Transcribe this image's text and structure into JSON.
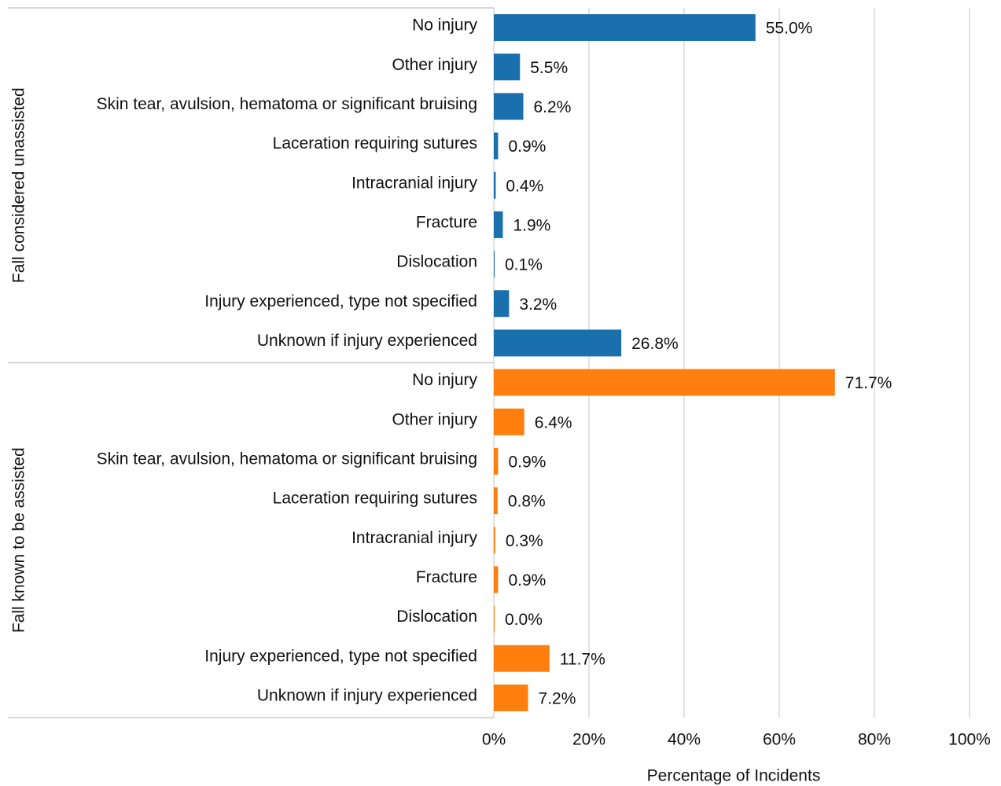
{
  "chart_data": {
    "type": "bar",
    "orientation": "horizontal",
    "xlabel": "Percentage of Incidents",
    "xlim": [
      0,
      100
    ],
    "xticks": [
      {
        "value": 0,
        "label": "0%"
      },
      {
        "value": 20,
        "label": "20%"
      },
      {
        "value": 40,
        "label": "40%"
      },
      {
        "value": 60,
        "label": "60%"
      },
      {
        "value": 80,
        "label": "80%"
      },
      {
        "value": 100,
        "label": "100%"
      }
    ],
    "grid": true,
    "groups": [
      {
        "name": "Fall considered unassisted",
        "color": "#1a6fad",
        "categories": [
          "No injury",
          "Other injury",
          "Skin tear, avulsion, hematoma or significant bruising",
          "Laceration requiring sutures",
          "Intracranial injury",
          "Fracture",
          "Dislocation",
          "Injury experienced, type not specified",
          "Unknown if injury experienced"
        ],
        "values": [
          55.0,
          5.5,
          6.2,
          0.9,
          0.4,
          1.9,
          0.1,
          3.2,
          26.8
        ],
        "value_labels": [
          "55.0%",
          "5.5%",
          "6.2%",
          "0.9%",
          "0.4%",
          "1.9%",
          "0.1%",
          "3.2%",
          "26.8%"
        ]
      },
      {
        "name": "Fall known to be assisted",
        "color": "#ff7f0e",
        "categories": [
          "No injury",
          "Other injury",
          "Skin tear, avulsion, hematoma or significant bruising",
          "Laceration requiring sutures",
          "Intracranial injury",
          "Fracture",
          "Dislocation",
          "Injury experienced, type not specified",
          "Unknown if injury experienced"
        ],
        "values": [
          71.7,
          6.4,
          0.9,
          0.8,
          0.3,
          0.9,
          0.0,
          11.7,
          7.2
        ],
        "value_labels": [
          "71.7%",
          "6.4%",
          "0.9%",
          "0.8%",
          "0.3%",
          "0.9%",
          "0.0%",
          "11.7%",
          "7.2%"
        ]
      }
    ]
  }
}
